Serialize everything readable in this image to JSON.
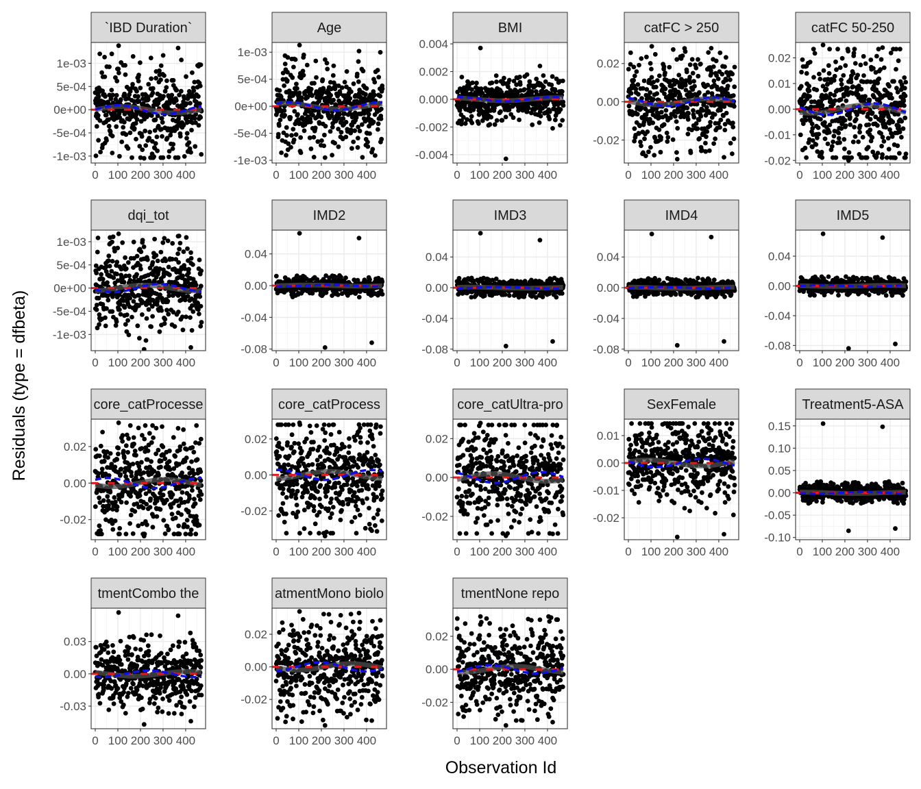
{
  "chart_data": {
    "type": "scatter",
    "xlabel": "Observation Id",
    "ylabel": "Residuals (type = dfbeta)",
    "x_range": [
      0,
      470
    ],
    "x_ticks": [
      0,
      100,
      200,
      300,
      400
    ],
    "x_tick_labels": [
      "0",
      "100",
      "200",
      "300",
      "400"
    ],
    "n_points": 470,
    "grid": true,
    "facets": [
      {
        "title": "`IBD Duration`",
        "ylim": [
          -0.00115,
          0.00145
        ],
        "y_ticks": [
          -0.001,
          -0.0005,
          0,
          0.0005,
          0.001
        ],
        "y_tick_labels": [
          "-1e-03",
          "-5e-04",
          "0e+00",
          "5e-04",
          "1e-03"
        ],
        "spread": 0.00038,
        "extremes": [
          0.00138,
          0.00133,
          -0.00105,
          -0.00092
        ]
      },
      {
        "title": "Age",
        "ylim": [
          -0.00105,
          0.00118
        ],
        "y_ticks": [
          -0.001,
          -0.0005,
          0,
          0.0005,
          0.001
        ],
        "y_tick_labels": [
          "-1e-03",
          "-5e-04",
          "0e+00",
          "5e-04",
          "1e-03"
        ],
        "spread": 0.0003,
        "extremes": [
          0.00113,
          0.00102,
          -0.00095,
          -0.00085
        ]
      },
      {
        "title": "BMI",
        "ylim": [
          -0.0046,
          0.0041
        ],
        "y_ticks": [
          -0.004,
          -0.002,
          0,
          0.002,
          0.004
        ],
        "y_tick_labels": [
          "-0.004",
          "-0.002",
          "0.000",
          "0.002",
          "0.004"
        ],
        "spread": 0.0006,
        "extremes": [
          0.0037,
          0.0024,
          -0.0043,
          -0.0021
        ]
      },
      {
        "title": "catFC > 250",
        "ylim": [
          -0.032,
          0.031
        ],
        "y_ticks": [
          -0.02,
          0,
          0.02
        ],
        "y_tick_labels": [
          "-0.02",
          "0.00",
          "0.02"
        ],
        "spread": 0.009,
        "extremes": [
          0.029,
          0.028,
          -0.03,
          -0.029
        ]
      },
      {
        "title": "catFC 50-250",
        "ylim": [
          -0.021,
          0.026
        ],
        "y_ticks": [
          -0.02,
          -0.01,
          0,
          0.01,
          0.02
        ],
        "y_tick_labels": [
          "-0.02",
          "-0.01",
          "0.00",
          "0.01",
          "0.02"
        ],
        "spread": 0.009,
        "extremes": [
          0.025,
          0.024,
          -0.02,
          -0.019
        ]
      },
      {
        "title": "dqi_tot",
        "ylim": [
          -0.00135,
          0.00125
        ],
        "y_ticks": [
          -0.001,
          -0.0005,
          0,
          0.0005,
          0.001
        ],
        "y_tick_labels": [
          "-1e-03",
          "-5e-04",
          "0e+00",
          "5e-04",
          "1e-03"
        ],
        "spread": 0.00035,
        "extremes": [
          0.00117,
          0.00112,
          -0.00132,
          -0.00128
        ]
      },
      {
        "title": "IMD2",
        "ylim": [
          -0.082,
          0.07
        ],
        "y_ticks": [
          -0.08,
          -0.04,
          0,
          0.04
        ],
        "y_tick_labels": [
          "-0.08",
          "-0.04",
          "0.00",
          "0.04"
        ],
        "spread": 0.004,
        "extremes": [
          0.066,
          0.06,
          -0.078,
          -0.072
        ]
      },
      {
        "title": "IMD3",
        "ylim": [
          -0.082,
          0.075
        ],
        "y_ticks": [
          -0.08,
          -0.04,
          0,
          0.04
        ],
        "y_tick_labels": [
          "-0.08",
          "-0.04",
          "0.00",
          "0.04"
        ],
        "spread": 0.004,
        "extremes": [
          0.071,
          0.062,
          -0.076,
          -0.07
        ]
      },
      {
        "title": "IMD4",
        "ylim": [
          -0.082,
          0.075
        ],
        "y_ticks": [
          -0.08,
          -0.04,
          0,
          0.04
        ],
        "y_tick_labels": [
          "-0.08",
          "-0.04",
          "0.00",
          "0.04"
        ],
        "spread": 0.004,
        "extremes": [
          0.07,
          0.066,
          -0.075,
          -0.07
        ]
      },
      {
        "title": "IMD5",
        "ylim": [
          -0.087,
          0.075
        ],
        "y_ticks": [
          -0.08,
          -0.04,
          0,
          0.04
        ],
        "y_tick_labels": [
          "-0.08",
          "-0.04",
          "0.00",
          "0.04"
        ],
        "spread": 0.004,
        "extremes": [
          0.07,
          0.065,
          -0.084,
          -0.078
        ]
      },
      {
        "title": "core_catProcesse",
        "ylim": [
          -0.031,
          0.035
        ],
        "y_ticks": [
          -0.02,
          0,
          0.02
        ],
        "y_tick_labels": [
          "-0.02",
          "0.00",
          "0.02"
        ],
        "spread": 0.011,
        "extremes": [
          0.033,
          0.03,
          -0.029,
          -0.028
        ]
      },
      {
        "title": "core_catProcess",
        "ylim": [
          -0.036,
          0.031
        ],
        "y_ticks": [
          -0.02,
          0,
          0.02
        ],
        "y_tick_labels": [
          "-0.02",
          "0.00",
          "0.02"
        ],
        "spread": 0.011,
        "extremes": [
          0.029,
          0.028,
          -0.034,
          -0.031
        ]
      },
      {
        "title": "core_catUltra-pro",
        "ylim": [
          -0.032,
          0.03
        ],
        "y_ticks": [
          -0.02,
          0,
          0.02
        ],
        "y_tick_labels": [
          "-0.02",
          "0.00",
          "0.02"
        ],
        "spread": 0.011,
        "extremes": [
          0.028,
          0.027,
          -0.03,
          -0.029
        ]
      },
      {
        "title": "SexFemale",
        "ylim": [
          -0.028,
          0.016
        ],
        "y_ticks": [
          -0.02,
          -0.01,
          0,
          0.01
        ],
        "y_tick_labels": [
          "-0.02",
          "-0.01",
          "0.00",
          "0.01"
        ],
        "spread": 0.006,
        "extremes": [
          0.013,
          0.012,
          -0.027,
          -0.026
        ]
      },
      {
        "title": "Treatment5-ASA",
        "ylim": [
          -0.105,
          0.165
        ],
        "y_ticks": [
          -0.1,
          -0.05,
          0,
          0.05,
          0.1,
          0.15
        ],
        "y_tick_labels": [
          "-0.10",
          "-0.05",
          "0.00",
          "0.05",
          "0.10",
          "0.15"
        ],
        "spread": 0.008,
        "extremes": [
          0.155,
          0.148,
          -0.085,
          -0.08
        ]
      },
      {
        "title": "tmentCombo the",
        "ylim": [
          -0.051,
          0.061
        ],
        "y_ticks": [
          -0.03,
          0,
          0.03
        ],
        "y_tick_labels": [
          "-0.03",
          "0.00",
          "0.03"
        ],
        "spread": 0.012,
        "extremes": [
          0.057,
          0.054,
          -0.047,
          -0.044
        ]
      },
      {
        "title": "atmentMono biolo",
        "ylim": [
          -0.038,
          0.036
        ],
        "y_ticks": [
          -0.02,
          0,
          0.02
        ],
        "y_tick_labels": [
          "-0.02",
          "0.00",
          "0.02"
        ],
        "spread": 0.011,
        "extremes": [
          0.034,
          0.033,
          -0.036,
          -0.033
        ]
      },
      {
        "title": "tmentNone repo",
        "ylim": [
          -0.036,
          0.037
        ],
        "y_ticks": [
          -0.02,
          0,
          0.02
        ],
        "y_tick_labels": [
          "-0.02",
          "0.00",
          "0.02"
        ],
        "spread": 0.01,
        "extremes": [
          0.032,
          0.03,
          -0.034,
          -0.032
        ]
      }
    ],
    "colors": {
      "points": "#000000",
      "smooth_dark": "#4d4d4d",
      "smooth_red": "#e41a1c",
      "smooth_blue": "#1010e6",
      "strip_fill": "#d9d9d9",
      "grid": "#ebebeb"
    }
  }
}
